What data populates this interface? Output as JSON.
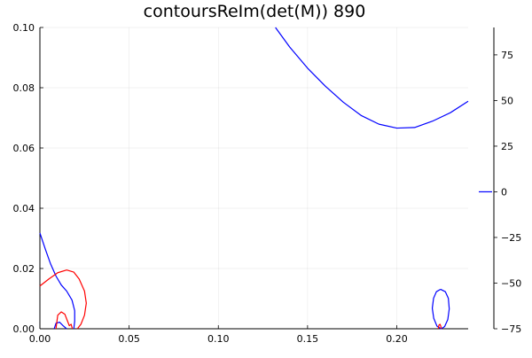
{
  "chart_data": {
    "type": "line",
    "title": "contoursReIm(det(M)) 890",
    "xlabel": "",
    "ylabel": "",
    "xlim": [
      0,
      0.24
    ],
    "ylim": [
      0,
      0.1
    ],
    "grid": true,
    "x_ticks": [
      0,
      0.05,
      0.1,
      0.15,
      0.2
    ],
    "x_tick_labels": [
      "0.00",
      "0.05",
      "0.10",
      "0.15",
      "0.20"
    ],
    "y_ticks": [
      0,
      0.02,
      0.04,
      0.06,
      0.08,
      0.1
    ],
    "y_tick_labels": [
      "0.00",
      "0.02",
      "0.04",
      "0.06",
      "0.08",
      "0.10"
    ],
    "colorbar": {
      "ticks": [
        75,
        50,
        25,
        0,
        -25,
        -50,
        -75
      ],
      "tick_labels": [
        "75",
        "50",
        "25",
        "0",
        "−25",
        "−50",
        "−75"
      ],
      "range": [
        -75,
        90
      ],
      "legend_entry_value": 0
    },
    "series": [
      {
        "color": "#0000ff",
        "segments": [
          [
            [
              0.132,
              0.1
            ],
            [
              0.14,
              0.0935
            ],
            [
              0.15,
              0.0865
            ],
            [
              0.16,
              0.0805
            ],
            [
              0.17,
              0.0752
            ],
            [
              0.18,
              0.0708
            ],
            [
              0.19,
              0.0679
            ],
            [
              0.2,
              0.0666
            ],
            [
              0.21,
              0.0668
            ],
            [
              0.22,
              0.0689
            ],
            [
              0.23,
              0.0717
            ],
            [
              0.24,
              0.0755
            ]
          ],
          [
            [
              0.0,
              0.0318
            ],
            [
              0.003,
              0.0265
            ],
            [
              0.006,
              0.0215
            ],
            [
              0.009,
              0.0175
            ],
            [
              0.012,
              0.0145
            ],
            [
              0.015,
              0.0125
            ],
            [
              0.018,
              0.0095
            ],
            [
              0.0195,
              0.006
            ],
            [
              0.0195,
              0.0025
            ],
            [
              0.019,
              0.0
            ]
          ],
          [
            [
              0.008,
              0.0
            ],
            [
              0.009,
              0.0018
            ],
            [
              0.011,
              0.0022
            ],
            [
              0.013,
              0.001
            ],
            [
              0.015,
              0.0
            ]
          ],
          [
            [
              0.2245,
              0.0131
            ],
            [
              0.2272,
              0.0123
            ],
            [
              0.2289,
              0.0101
            ],
            [
              0.2294,
              0.0066
            ],
            [
              0.2286,
              0.0031
            ],
            [
              0.2268,
              0.0007
            ],
            [
              0.2248,
              0.0
            ],
            [
              0.2225,
              0.0009
            ],
            [
              0.2207,
              0.0035
            ],
            [
              0.2199,
              0.0068
            ],
            [
              0.2206,
              0.0101
            ],
            [
              0.2222,
              0.0123
            ],
            [
              0.2245,
              0.0131
            ]
          ]
        ]
      },
      {
        "color": "#ff0000",
        "segments": [
          [
            [
              0.0,
              0.0142
            ],
            [
              0.005,
              0.0165
            ],
            [
              0.01,
              0.0186
            ],
            [
              0.015,
              0.0195
            ],
            [
              0.019,
              0.0188
            ],
            [
              0.022,
              0.0165
            ],
            [
              0.025,
              0.0125
            ],
            [
              0.026,
              0.0085
            ],
            [
              0.025,
              0.0045
            ],
            [
              0.023,
              0.0015
            ],
            [
              0.021,
              0.0
            ]
          ],
          [
            [
              0.009,
              0.0
            ],
            [
              0.01,
              0.0045
            ],
            [
              0.012,
              0.0056
            ],
            [
              0.014,
              0.0048
            ],
            [
              0.0155,
              0.0025
            ],
            [
              0.0165,
              0.001
            ],
            [
              0.0175,
              0.0015
            ],
            [
              0.0182,
              0.0
            ]
          ],
          [
            [
              0.2232,
              0.0
            ],
            [
              0.2236,
              0.0012
            ],
            [
              0.2242,
              0.0015
            ],
            [
              0.2247,
              0.0008
            ],
            [
              0.2249,
              0.0
            ]
          ]
        ]
      }
    ]
  }
}
